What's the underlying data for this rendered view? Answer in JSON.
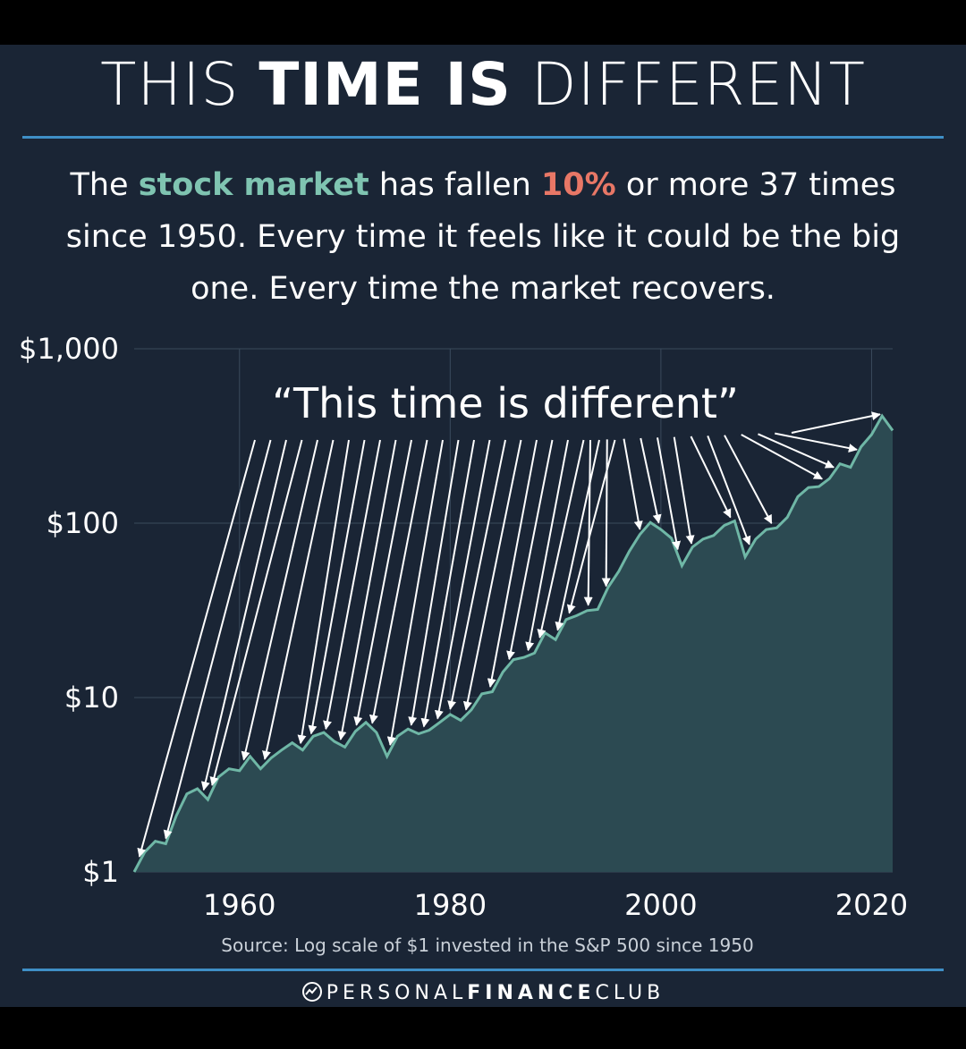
{
  "header": {
    "title_part1": "THIS",
    "title_part2": "TIME IS",
    "title_part3": "DIFFERENT",
    "subtitle_part1": "The",
    "subtitle_highlight1": "stock market",
    "subtitle_part2": "has fallen",
    "subtitle_highlight2": "10%",
    "subtitle_part3": "or more 37 times since 1950. Every time it feels like it could be the big one. Every time the market recovers."
  },
  "colors": {
    "background": "#1a2535",
    "accent_green": "#7fc4b1",
    "accent_red": "#e87766",
    "area_fill": "#2c4a52",
    "line": "#6fb7a6",
    "rule": "#3f8fc6"
  },
  "chart_data": {
    "type": "area",
    "y_scale": "log",
    "ylim": [
      1,
      1000
    ],
    "xlim": [
      1950,
      2022
    ],
    "ytick_labels": [
      "$1,000",
      "$100",
      "$10",
      "$1"
    ],
    "ytick_values": [
      1000,
      100,
      10,
      1
    ],
    "xtick_labels": [
      "1960",
      "1980",
      "2000",
      "2020"
    ],
    "xtick_values": [
      1960,
      1980,
      2000,
      2020
    ],
    "grid": true,
    "annotation": "“This time is different”",
    "source": "Source: Log scale of $1 invested in the S&P 500 since 1950",
    "series": [
      {
        "values": [
          [
            1950,
            1.0
          ],
          [
            1951,
            1.3
          ],
          [
            1952,
            1.5
          ],
          [
            1953,
            1.45
          ],
          [
            1954,
            2.1
          ],
          [
            1955,
            2.8
          ],
          [
            1956,
            3.0
          ],
          [
            1957,
            2.6
          ],
          [
            1958,
            3.5
          ],
          [
            1959,
            3.9
          ],
          [
            1960,
            3.8
          ],
          [
            1961,
            4.6
          ],
          [
            1962,
            3.9
          ],
          [
            1963,
            4.5
          ],
          [
            1964,
            5.0
          ],
          [
            1965,
            5.5
          ],
          [
            1966,
            5.0
          ],
          [
            1967,
            6.0
          ],
          [
            1968,
            6.3
          ],
          [
            1969,
            5.6
          ],
          [
            1970,
            5.2
          ],
          [
            1971,
            6.4
          ],
          [
            1972,
            7.2
          ],
          [
            1973,
            6.3
          ],
          [
            1974,
            4.6
          ],
          [
            1975,
            6.0
          ],
          [
            1976,
            6.6
          ],
          [
            1977,
            6.2
          ],
          [
            1978,
            6.5
          ],
          [
            1979,
            7.2
          ],
          [
            1980,
            8.0
          ],
          [
            1981,
            7.4
          ],
          [
            1982,
            8.5
          ],
          [
            1983,
            10.5
          ],
          [
            1984,
            10.8
          ],
          [
            1985,
            14.0
          ],
          [
            1986,
            16.5
          ],
          [
            1987,
            17.0
          ],
          [
            1988,
            18.0
          ],
          [
            1989,
            23.5
          ],
          [
            1990,
            21.5
          ],
          [
            1991,
            28.0
          ],
          [
            1992,
            29.5
          ],
          [
            1993,
            31.5
          ],
          [
            1994,
            32.0
          ],
          [
            1995,
            43.0
          ],
          [
            1996,
            53.0
          ],
          [
            1997,
            69.0
          ],
          [
            1998,
            86.0
          ],
          [
            1999,
            101.0
          ],
          [
            2000,
            92.0
          ],
          [
            2001,
            82.0
          ],
          [
            2002,
            57.0
          ],
          [
            2003,
            73.0
          ],
          [
            2004,
            81.0
          ],
          [
            2005,
            85.0
          ],
          [
            2006,
            97.0
          ],
          [
            2007,
            103.0
          ],
          [
            2008,
            64.0
          ],
          [
            2009,
            81.0
          ],
          [
            2010,
            92.0
          ],
          [
            2011,
            94.0
          ],
          [
            2012,
            108.0
          ],
          [
            2013,
            142.0
          ],
          [
            2014,
            160.0
          ],
          [
            2015,
            162.0
          ],
          [
            2016,
            180.0
          ],
          [
            2017,
            219.0
          ],
          [
            2018,
            209.0
          ],
          [
            2019,
            274.0
          ],
          [
            2020,
            322.0
          ],
          [
            2021,
            412.0
          ],
          [
            2022,
            340.0
          ]
        ]
      }
    ],
    "arrow_targets": [
      1950.5,
      1953.0,
      1956.6,
      1957.4,
      1960.4,
      1962.4,
      1965.8,
      1966.8,
      1968.2,
      1969.6,
      1971.1,
      1972.6,
      1974.3,
      1976.3,
      1977.5,
      1978.8,
      1980.0,
      1981.5,
      1983.8,
      1985.6,
      1987.4,
      1988.5,
      1990.2,
      1991.3,
      1993.1,
      1994.8,
      1998.0,
      1999.8,
      2001.6,
      2002.9,
      2006.6,
      2008.4,
      2010.5,
      2015.3,
      2016.4,
      2018.6,
      2020.8
    ]
  },
  "footer": {
    "brand_part1": "PERSONAL",
    "brand_part2": "FINANCE",
    "brand_part3": "CLUB"
  }
}
